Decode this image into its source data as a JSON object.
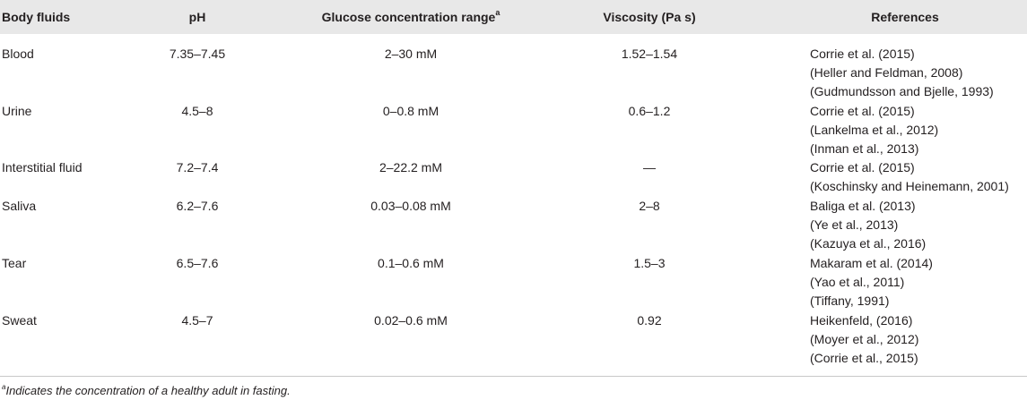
{
  "table": {
    "headers": {
      "body_fluids": "Body fluids",
      "ph": "pH",
      "glucose": "Glucose concentration range",
      "glucose_sup": "a",
      "viscosity": "Viscosity (Pa s)",
      "references": "References"
    },
    "rows": [
      {
        "fluid": "Blood",
        "ph": "7.35–7.45",
        "glucose": "2–30 mM",
        "viscosity": "1.52–1.54",
        "refs": [
          "Corrie et al. (2015)",
          "(Heller and Feldman, 2008)",
          "(Gudmundsson and Bjelle, 1993)"
        ]
      },
      {
        "fluid": "Urine",
        "ph": "4.5–8",
        "glucose": "0–0.8 mM",
        "viscosity": "0.6–1.2",
        "refs": [
          "Corrie et al. (2015)",
          "(Lankelma et al., 2012)",
          "(Inman et al., 2013)"
        ]
      },
      {
        "fluid": "Interstitial fluid",
        "ph": "7.2–7.4",
        "glucose": "2–22.2 mM",
        "viscosity": "—",
        "refs": [
          "Corrie et al. (2015)",
          "(Koschinsky and Heinemann, 2001)"
        ]
      },
      {
        "fluid": "Saliva",
        "ph": "6.2–7.6",
        "glucose": "0.03–0.08 mM",
        "viscosity": "2–8",
        "refs": [
          "Baliga et al. (2013)",
          "(Ye et al., 2013)",
          "(Kazuya et al., 2016)"
        ]
      },
      {
        "fluid": "Tear",
        "ph": "6.5–7.6",
        "glucose": "0.1–0.6 mM",
        "viscosity": "1.5–3",
        "refs": [
          "Makaram et al. (2014)",
          "(Yao et al., 2011)",
          "(Tiffany, 1991)"
        ]
      },
      {
        "fluid": "Sweat",
        "ph": "4.5–7",
        "glucose": "0.02–0.6 mM",
        "viscosity": "0.92",
        "refs": [
          "Heikenfeld, (2016)",
          "(Moyer et al., 2012)",
          "(Corrie et al., 2015)"
        ]
      }
    ]
  },
  "footnote": {
    "marker": "a",
    "text": "Indicates the concentration of a healthy adult in fasting."
  },
  "colors": {
    "header_bg": "#e8e8e8",
    "rule": "#c8c8c8",
    "text": "#231f20"
  }
}
